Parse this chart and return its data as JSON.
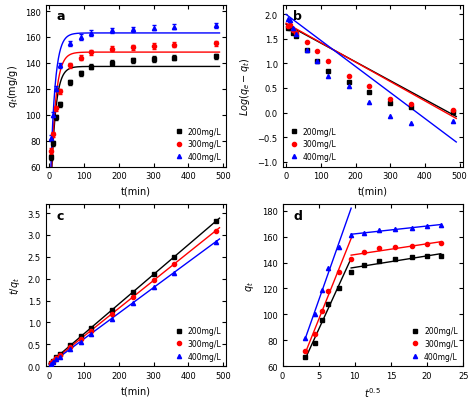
{
  "panel_a": {
    "title": "a",
    "xlabel": "t(min)",
    "ylabel": "$q_t$(mg/g)",
    "t": [
      5,
      10,
      20,
      30,
      60,
      90,
      120,
      180,
      240,
      300,
      360,
      480
    ],
    "q_200": [
      67,
      78,
      98,
      108,
      125,
      132,
      137,
      140,
      142,
      143,
      144,
      145
    ],
    "q_300": [
      72,
      85,
      105,
      118,
      138,
      144,
      148,
      151,
      152,
      153,
      154,
      155
    ],
    "q_400": [
      82,
      100,
      120,
      138,
      155,
      160,
      163,
      165,
      166,
      167,
      168,
      169
    ],
    "colors": [
      "black",
      "red",
      "blue"
    ],
    "markers": [
      "s",
      "o",
      "^"
    ],
    "labels": [
      "200mg/L",
      "300mg/L",
      "400mg/L"
    ],
    "ylim": [
      60,
      185
    ],
    "xlim": [
      -10,
      510
    ],
    "yticks": [
      60,
      80,
      100,
      120,
      140,
      160,
      180
    ]
  },
  "panel_b": {
    "title": "b",
    "xlabel": "t(min)",
    "ylabel": "$Log(q_e-q_t)$",
    "t": [
      5,
      10,
      20,
      30,
      60,
      90,
      120,
      180,
      240,
      300,
      360,
      480
    ],
    "log_200": [
      1.73,
      1.72,
      1.62,
      1.55,
      1.28,
      1.05,
      0.85,
      0.62,
      0.42,
      0.2,
      0.12,
      0.02
    ],
    "log_300": [
      1.76,
      1.78,
      1.68,
      1.62,
      1.44,
      1.25,
      1.05,
      0.75,
      0.55,
      0.28,
      0.18,
      0.05
    ],
    "log_400": [
      1.9,
      1.88,
      1.73,
      1.6,
      1.28,
      1.05,
      0.75,
      0.55,
      0.22,
      -0.08,
      -0.22,
      -0.18
    ],
    "fit_t": [
      0,
      490
    ],
    "fit_200": [
      1.8,
      -0.08
    ],
    "fit_300": [
      1.82,
      -0.12
    ],
    "fit_400": [
      2.0,
      -0.6
    ],
    "colors": [
      "black",
      "red",
      "blue"
    ],
    "markers": [
      "s",
      "o",
      "^"
    ],
    "labels": [
      "200mg/L",
      "300mg/L",
      "400mg/L"
    ],
    "ylim": [
      -1.1,
      2.2
    ],
    "xlim": [
      -10,
      510
    ],
    "yticks": [
      -1.0,
      -0.5,
      0.0,
      0.5,
      1.0,
      1.5,
      2.0
    ]
  },
  "panel_c": {
    "title": "c",
    "xlabel": "t(min)",
    "ylabel": "$t/q_t$",
    "t": [
      5,
      10,
      20,
      30,
      60,
      90,
      120,
      180,
      240,
      300,
      360,
      480
    ],
    "tq_200": [
      0.075,
      0.13,
      0.2,
      0.28,
      0.48,
      0.68,
      0.88,
      1.29,
      1.69,
      2.1,
      2.5,
      3.31
    ],
    "tq_300": [
      0.069,
      0.12,
      0.19,
      0.25,
      0.44,
      0.63,
      0.81,
      1.19,
      1.58,
      1.96,
      2.34,
      3.1
    ],
    "tq_400": [
      0.061,
      0.1,
      0.17,
      0.22,
      0.39,
      0.56,
      0.74,
      1.09,
      1.45,
      1.82,
      2.14,
      2.84
    ],
    "colors": [
      "black",
      "red",
      "blue"
    ],
    "markers": [
      "s",
      "o",
      "^"
    ],
    "labels": [
      "200mg/L",
      "300mg/L",
      "400mg/L"
    ],
    "ylim": [
      0,
      3.7
    ],
    "xlim": [
      -10,
      510
    ],
    "yticks": [
      0.0,
      0.5,
      1.0,
      1.5,
      2.0,
      2.5,
      3.0,
      3.5
    ]
  },
  "panel_d": {
    "title": "d",
    "xlabel": "$t^{0.5}$",
    "ylabel": "$q_t$",
    "t05": [
      3.16,
      4.47,
      5.48,
      6.32,
      7.75,
      9.49,
      11.2,
      13.4,
      15.5,
      17.9,
      20.0,
      21.9
    ],
    "q_200": [
      67,
      78,
      96,
      108,
      120,
      133,
      138,
      141,
      143,
      144,
      145,
      145
    ],
    "q_300": [
      72,
      85,
      103,
      118,
      133,
      143,
      148,
      151,
      152,
      153,
      154,
      155
    ],
    "q_400": [
      82,
      100,
      119,
      136,
      152,
      161,
      163,
      165,
      166,
      167,
      168,
      169
    ],
    "fit1_end_idx": 5,
    "colors": [
      "black",
      "red",
      "blue"
    ],
    "markers": [
      "s",
      "o",
      "^"
    ],
    "labels": [
      "200mg/L",
      "300mg/L",
      "400mg/L"
    ],
    "ylim": [
      60,
      185
    ],
    "xlim": [
      0,
      25
    ],
    "yticks": [
      60,
      80,
      100,
      120,
      140,
      160,
      180
    ]
  }
}
